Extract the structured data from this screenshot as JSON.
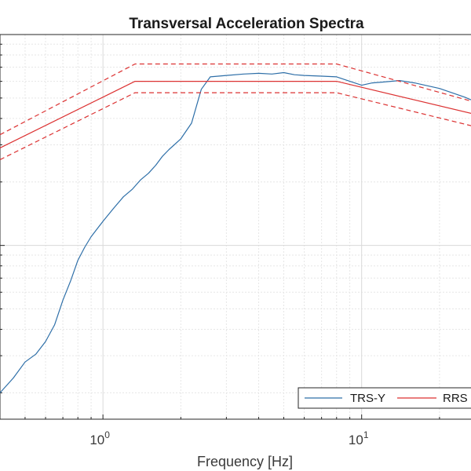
{
  "chart_data": {
    "type": "line",
    "title": "Transversal Acceleration Spectra",
    "xlabel": "Frequency [Hz]",
    "ylabel": "",
    "x_scale": "log",
    "y_scale": "log",
    "xlim": [
      0.4,
      35
    ],
    "ylim": [
      0.15,
      10
    ],
    "grid": true,
    "legend_position": "bottom-right",
    "x_tick_labels": [
      {
        "value": 1,
        "base": "10",
        "exp": "0"
      },
      {
        "value": 10,
        "base": "10",
        "exp": "1"
      }
    ],
    "series": [
      {
        "name": "TRS-Y",
        "color": "#2e6fa8",
        "style": "solid",
        "x": [
          0.4,
          0.45,
          0.5,
          0.55,
          0.6,
          0.65,
          0.7,
          0.75,
          0.8,
          0.85,
          0.9,
          1.0,
          1.1,
          1.2,
          1.3,
          1.4,
          1.5,
          1.6,
          1.7,
          1.8,
          2.0,
          2.2,
          2.4,
          2.6,
          3.0,
          3.5,
          4.0,
          4.5,
          5.0,
          5.5,
          6.0,
          7.0,
          8.0,
          10.0,
          11.0,
          12.0,
          14.0,
          16.0,
          20.0,
          25.0,
          30.0,
          35.0
        ],
        "y": [
          0.2,
          0.235,
          0.28,
          0.305,
          0.35,
          0.42,
          0.55,
          0.68,
          0.85,
          0.98,
          1.1,
          1.3,
          1.5,
          1.7,
          1.85,
          2.05,
          2.2,
          2.4,
          2.65,
          2.85,
          3.2,
          3.8,
          5.5,
          6.3,
          6.4,
          6.5,
          6.55,
          6.5,
          6.6,
          6.45,
          6.4,
          6.35,
          6.3,
          5.75,
          5.9,
          5.95,
          6.05,
          5.9,
          5.55,
          5.05,
          4.6,
          4.3
        ]
      },
      {
        "name": "RRS",
        "color": "#dc3232",
        "style": "solid",
        "x": [
          0.4,
          1.33,
          8.0,
          35.0
        ],
        "y": [
          2.9,
          6.0,
          6.0,
          3.9
        ]
      },
      {
        "name": "",
        "color": "#dc3232",
        "style": "dashed",
        "x": [
          0.4,
          1.33,
          8.0,
          35.0
        ],
        "y": [
          3.35,
          7.25,
          7.25,
          4.4
        ]
      },
      {
        "name": "",
        "color": "#dc3232",
        "style": "dashed",
        "x": [
          0.4,
          1.33,
          8.0,
          35.0
        ],
        "y": [
          2.55,
          5.3,
          5.3,
          3.4
        ]
      }
    ],
    "legend": [
      {
        "label": "TRS-Y",
        "color": "#2e6fa8"
      },
      {
        "label": "RRS",
        "color": "#dc3232"
      }
    ]
  }
}
